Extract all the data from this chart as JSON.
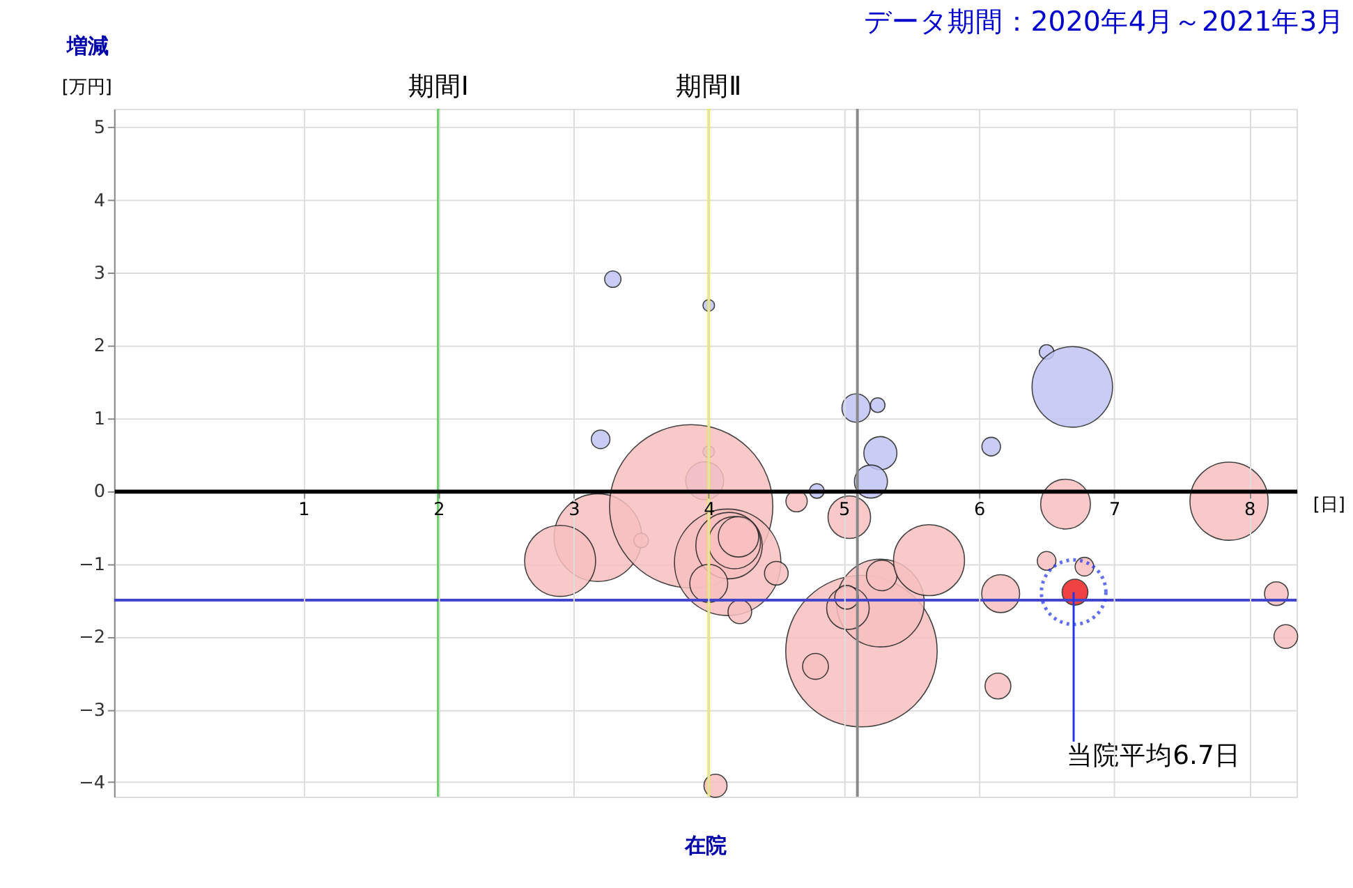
{
  "chart_data": {
    "type": "bubble",
    "title": "データ期間：2020年4月～2021年3月",
    "xlabel": "在院",
    "ylabel": "増減",
    "annotations": [
      "[万円]",
      "[日]",
      {
        "text": "当院平均6.7日",
        "x": 6.7,
        "y": -1.39
      }
    ],
    "series": [
      {
        "color": "#c0c4f4",
        "x": [
          3.29,
          4.0,
          3.2,
          4.0,
          3.97,
          5.09,
          5.25,
          5.27,
          5.2,
          4.8,
          6.09,
          6.5,
          6.69
        ],
        "values": [
          2.91,
          2.55,
          0.71,
          0.54,
          0.14,
          1.14,
          1.18,
          0.52,
          0.13,
          0.0,
          0.61,
          1.91,
          1.43
        ],
        "sizes": [
          0.01,
          0.005,
          0.013,
          0.005,
          0.054,
          0.03,
          0.008,
          0.041,
          0.041,
          0.008,
          0.013,
          0.008,
          0.243
        ]
      },
      {
        "color": "#f8c0c0",
        "x": [
          3.18,
          2.9,
          3.5,
          3.87,
          4.14,
          4.15,
          4.19,
          4.22,
          4.0,
          4.23,
          4.5,
          4.65,
          5.04,
          5.13,
          5.27,
          5.03,
          5.02,
          5.28,
          4.79,
          5.63,
          4.05,
          6.64,
          7.85,
          6.5,
          6.78,
          6.16,
          8.2,
          8.27,
          6.14
        ],
        "values": [
          -0.64,
          -0.96,
          -0.68,
          -0.21,
          -0.98,
          -0.75,
          -0.71,
          -0.63,
          -1.27,
          -1.66,
          -1.13,
          -0.14,
          -0.36,
          -2.2,
          -1.54,
          -1.61,
          -1.46,
          -1.16,
          -2.41,
          -0.95,
          -4.05,
          -0.18,
          -0.14,
          -0.96,
          -1.04,
          -1.41,
          -1.41,
          -2.0,
          -2.68
        ],
        "sizes": [
          0.288,
          0.189,
          0.008,
          1.0,
          0.425,
          0.165,
          0.102,
          0.061,
          0.054,
          0.021,
          0.021,
          0.017,
          0.068,
          0.86,
          0.288,
          0.068,
          0.021,
          0.035,
          0.025,
          0.189,
          0.02,
          0.093,
          0.229,
          0.013,
          0.013,
          0.054,
          0.021,
          0.021,
          0.025
        ]
      },
      {
        "color": "#ee2222",
        "x": [
          6.71
        ],
        "values": [
          -1.39
        ],
        "sizes": [
          0.025
        ]
      }
    ],
    "xlim": [
      -0.4,
      8.35
    ],
    "ylim": [
      -4.2,
      5.25
    ],
    "xticks": [
      1,
      2,
      3,
      4,
      5,
      6,
      7,
      8
    ],
    "yticks": [
      -4,
      -3,
      -2,
      -1,
      0,
      1,
      2,
      3,
      4,
      5
    ],
    "ref_lines": [
      {
        "axis": "x",
        "value": 2,
        "label": "期間Ⅰ",
        "color": "#44cc44"
      },
      {
        "axis": "x",
        "value": 4,
        "label": "期間Ⅱ",
        "color": "#f0f020"
      },
      {
        "axis": "x",
        "value": 5.1,
        "color": "#888888"
      },
      {
        "axis": "y",
        "value": -1.5,
        "color": "#4444cc"
      }
    ],
    "grid": true
  }
}
